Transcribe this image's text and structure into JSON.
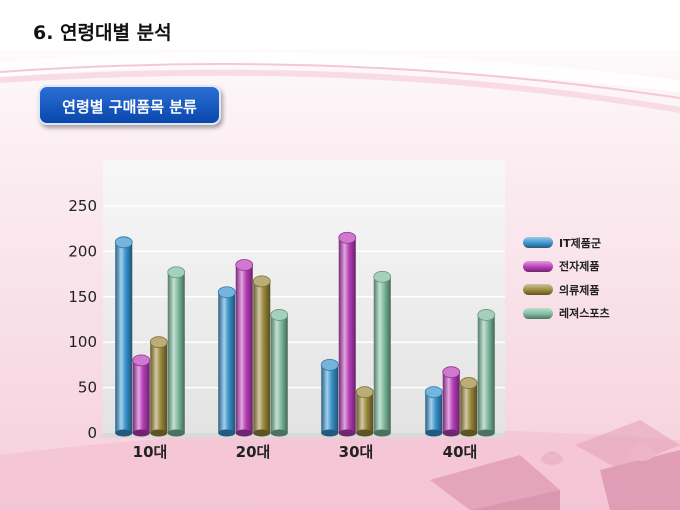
{
  "slide": {
    "title": "6. 연령대별 분석",
    "section_label": "연령별 구매품목 분류"
  },
  "chart_data": {
    "type": "bar",
    "categories": [
      "10대",
      "20대",
      "30대",
      "40대"
    ],
    "series": [
      {
        "name": "IT제품군",
        "color": "#3a95cf",
        "values": [
          210,
          155,
          75,
          45
        ]
      },
      {
        "name": "전자제품",
        "color": "#b93eb9",
        "values": [
          80,
          185,
          215,
          67
        ]
      },
      {
        "name": "의류제품",
        "color": "#9c8a3c",
        "values": [
          100,
          167,
          45,
          55
        ]
      },
      {
        "name": "레져스포츠",
        "color": "#7fbca0",
        "values": [
          177,
          130,
          172,
          130
        ]
      }
    ],
    "ylim": [
      0,
      250
    ],
    "yticks": [
      "0",
      "50",
      "100",
      "150",
      "200",
      "250"
    ],
    "grid": true,
    "legend_position": "right",
    "xlabel": "",
    "ylabel": ""
  }
}
